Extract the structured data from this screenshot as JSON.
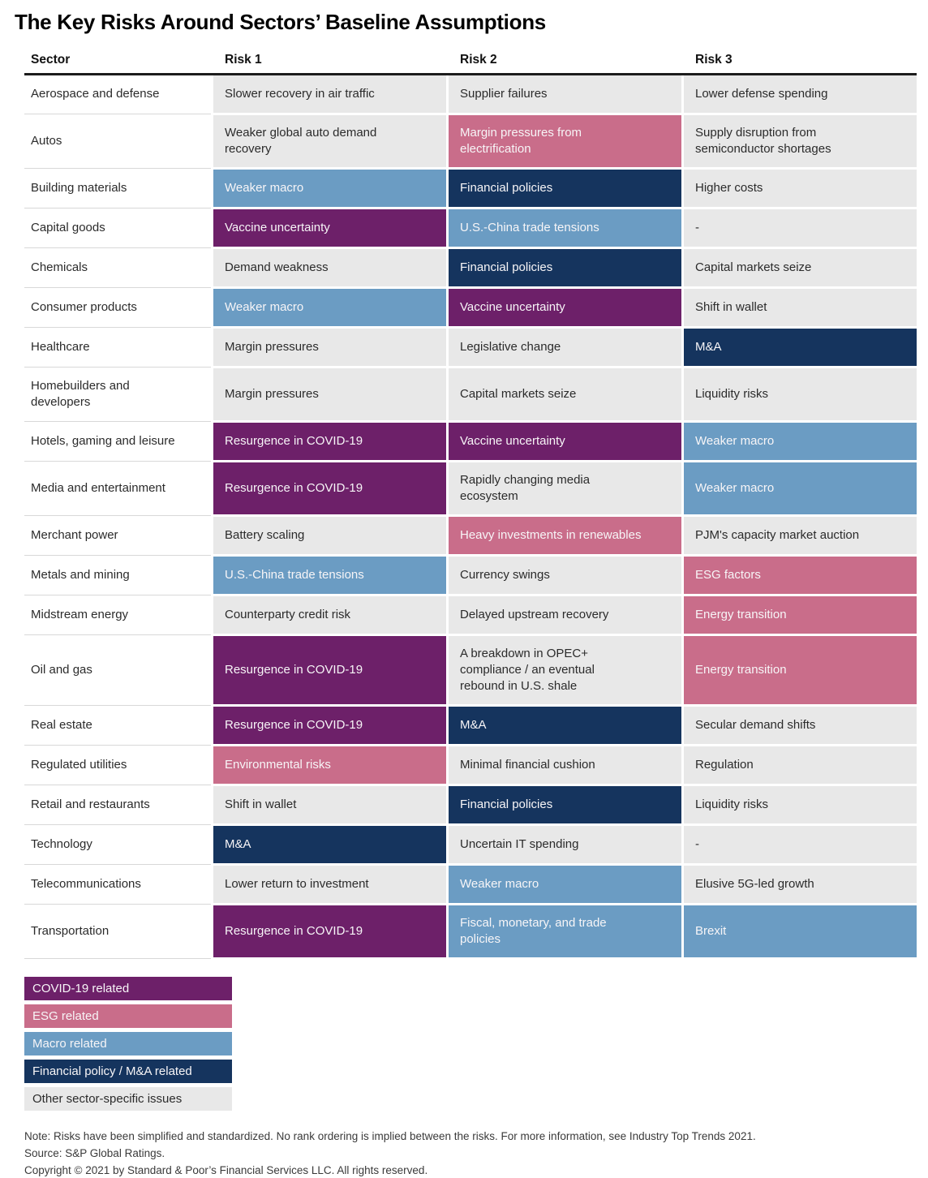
{
  "chart_data": {
    "type": "table",
    "title": "The Key Risks Around Sectors’ Baseline Assumptions",
    "columns": [
      "Sector",
      "Risk 1",
      "Risk 2",
      "Risk 3"
    ],
    "rows": [
      {
        "sector": "Aerospace and defense",
        "risks": [
          {
            "text": "Slower recovery in air traffic",
            "category": "other"
          },
          {
            "text": "Supplier failures",
            "category": "other"
          },
          {
            "text": "Lower defense spending",
            "category": "other"
          }
        ]
      },
      {
        "sector": "Autos",
        "risks": [
          {
            "text": "Weaker global auto demand\nrecovery",
            "category": "other"
          },
          {
            "text": "Margin pressures from\nelectrification",
            "category": "esg"
          },
          {
            "text": "Supply disruption from\nsemiconductor shortages",
            "category": "other"
          }
        ]
      },
      {
        "sector": "Building materials",
        "risks": [
          {
            "text": "Weaker macro",
            "category": "macro"
          },
          {
            "text": "Financial policies",
            "category": "financial"
          },
          {
            "text": "Higher costs",
            "category": "other"
          }
        ]
      },
      {
        "sector": "Capital goods",
        "risks": [
          {
            "text": "Vaccine uncertainty",
            "category": "covid"
          },
          {
            "text": "U.S.-China trade tensions",
            "category": "macro"
          },
          {
            "text": "-",
            "category": "other"
          }
        ]
      },
      {
        "sector": "Chemicals",
        "risks": [
          {
            "text": "Demand weakness",
            "category": "other"
          },
          {
            "text": "Financial policies",
            "category": "financial"
          },
          {
            "text": "Capital markets seize",
            "category": "other"
          }
        ]
      },
      {
        "sector": "Consumer products",
        "risks": [
          {
            "text": "Weaker macro",
            "category": "macro"
          },
          {
            "text": "Vaccine uncertainty",
            "category": "covid"
          },
          {
            "text": "Shift in wallet",
            "category": "other"
          }
        ]
      },
      {
        "sector": "Healthcare",
        "risks": [
          {
            "text": "Margin pressures",
            "category": "other"
          },
          {
            "text": "Legislative change",
            "category": "other"
          },
          {
            "text": "M&A",
            "category": "financial"
          }
        ]
      },
      {
        "sector": "Homebuilders and developers",
        "risks": [
          {
            "text": "Margin pressures",
            "category": "other"
          },
          {
            "text": "Capital markets seize",
            "category": "other"
          },
          {
            "text": "Liquidity risks",
            "category": "other"
          }
        ]
      },
      {
        "sector": "Hotels, gaming and leisure",
        "risks": [
          {
            "text": "Resurgence in COVID-19",
            "category": "covid"
          },
          {
            "text": "Vaccine uncertainty",
            "category": "covid"
          },
          {
            "text": "Weaker macro",
            "category": "macro"
          }
        ]
      },
      {
        "sector": "Media and entertainment",
        "risks": [
          {
            "text": "Resurgence in COVID-19",
            "category": "covid"
          },
          {
            "text": "Rapidly changing media\necosystem",
            "category": "other"
          },
          {
            "text": "Weaker macro",
            "category": "macro"
          }
        ]
      },
      {
        "sector": "Merchant power",
        "risks": [
          {
            "text": "Battery scaling",
            "category": "other"
          },
          {
            "text": "Heavy investments in renewables",
            "category": "esg"
          },
          {
            "text": "PJM's capacity market auction",
            "category": "other"
          }
        ]
      },
      {
        "sector": "Metals and mining",
        "risks": [
          {
            "text": "U.S.-China trade tensions",
            "category": "macro"
          },
          {
            "text": "Currency swings",
            "category": "other"
          },
          {
            "text": "ESG factors",
            "category": "esg"
          }
        ]
      },
      {
        "sector": "Midstream energy",
        "risks": [
          {
            "text": "Counterparty credit risk",
            "category": "other"
          },
          {
            "text": "Delayed upstream recovery",
            "category": "other"
          },
          {
            "text": "Energy transition",
            "category": "esg"
          }
        ]
      },
      {
        "sector": "Oil and gas",
        "risks": [
          {
            "text": "Resurgence in COVID-19",
            "category": "covid"
          },
          {
            "text": "A breakdown in OPEC+\ncompliance / an eventual\nrebound in U.S. shale",
            "category": "other"
          },
          {
            "text": "Energy transition",
            "category": "esg"
          }
        ]
      },
      {
        "sector": "Real estate",
        "risks": [
          {
            "text": "Resurgence in COVID-19",
            "category": "covid"
          },
          {
            "text": "M&A",
            "category": "financial"
          },
          {
            "text": "Secular demand shifts",
            "category": "other"
          }
        ]
      },
      {
        "sector": "Regulated utilities",
        "risks": [
          {
            "text": "Environmental risks",
            "category": "esg"
          },
          {
            "text": "Minimal financial cushion",
            "category": "other"
          },
          {
            "text": "Regulation",
            "category": "other"
          }
        ]
      },
      {
        "sector": "Retail and restaurants",
        "risks": [
          {
            "text": "Shift in wallet",
            "category": "other"
          },
          {
            "text": "Financial policies",
            "category": "financial"
          },
          {
            "text": "Liquidity risks",
            "category": "other"
          }
        ]
      },
      {
        "sector": "Technology",
        "risks": [
          {
            "text": "M&A",
            "category": "financial"
          },
          {
            "text": "Uncertain IT spending",
            "category": "other"
          },
          {
            "text": "-",
            "category": "other"
          }
        ]
      },
      {
        "sector": "Telecommunications",
        "risks": [
          {
            "text": "Lower return to investment",
            "category": "other"
          },
          {
            "text": "Weaker macro",
            "category": "macro"
          },
          {
            "text": "Elusive 5G-led growth",
            "category": "other"
          }
        ]
      },
      {
        "sector": "Transportation",
        "risks": [
          {
            "text": "Resurgence in COVID-19",
            "category": "covid"
          },
          {
            "text": "Fiscal, monetary, and trade\npolicies",
            "category": "macro"
          },
          {
            "text": "Brexit",
            "category": "macro"
          }
        ]
      }
    ],
    "legend": [
      {
        "label": "COVID-19 related",
        "category": "covid"
      },
      {
        "label": "ESG related",
        "category": "esg"
      },
      {
        "label": "Macro related",
        "category": "macro"
      },
      {
        "label": "Financial policy / M&A related",
        "category": "financial"
      },
      {
        "label": "Other sector-specific issues",
        "category": "other"
      }
    ],
    "colors": {
      "covid": "#6d2069",
      "esg": "#c96d8a",
      "macro": "#6b9cc3",
      "financial": "#15345e",
      "other": "#e8e8e8"
    },
    "notes": {
      "note": "Note: Risks have been simplified and standardized. No rank ordering is implied between the risks. For more information, see Industry Top Trends 2021.",
      "source": "Source: S&P Global Ratings.",
      "copyright": "Copyright © 2021 by Standard & Poor’s Financial Services LLC. All rights reserved."
    }
  }
}
